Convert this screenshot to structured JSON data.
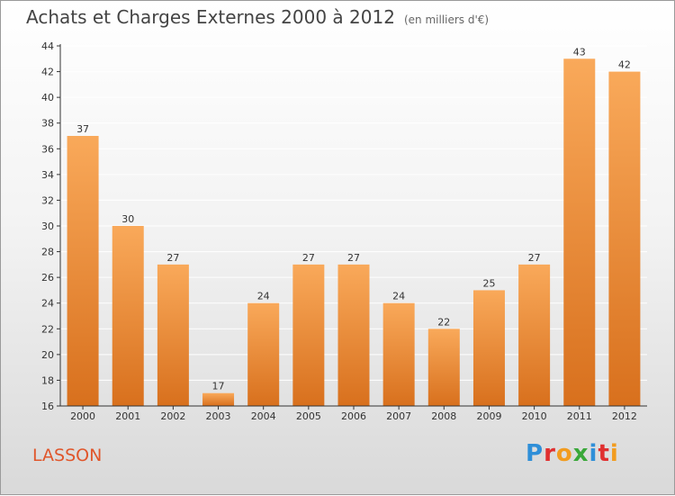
{
  "title": "Achats et Charges Externes 2000 à 2012",
  "unit": "(en milliers d'€)",
  "commune": "LASSON",
  "logo": {
    "text": "Proxiti",
    "colors": [
      "#2f8fd8",
      "#e03030",
      "#f29c1f",
      "#3aa83a",
      "#2f8fd8",
      "#e03030",
      "#f29c1f"
    ]
  },
  "colors": {
    "bar_light": "#f9a95a",
    "bar_dark": "#d8701d",
    "grid": "#ffffff",
    "axis": "#333333"
  },
  "chart_data": {
    "type": "bar",
    "categories": [
      "2000",
      "2001",
      "2002",
      "2003",
      "2004",
      "2005",
      "2006",
      "2007",
      "2008",
      "2009",
      "2010",
      "2011",
      "2012"
    ],
    "values": [
      37,
      30,
      27,
      17,
      24,
      27,
      27,
      24,
      22,
      25,
      27,
      43,
      42
    ],
    "ylim": [
      16,
      44
    ],
    "yticks": [
      16,
      18,
      20,
      22,
      24,
      26,
      28,
      30,
      32,
      34,
      36,
      38,
      40,
      42,
      44
    ],
    "grid": true,
    "data_labels": true
  }
}
